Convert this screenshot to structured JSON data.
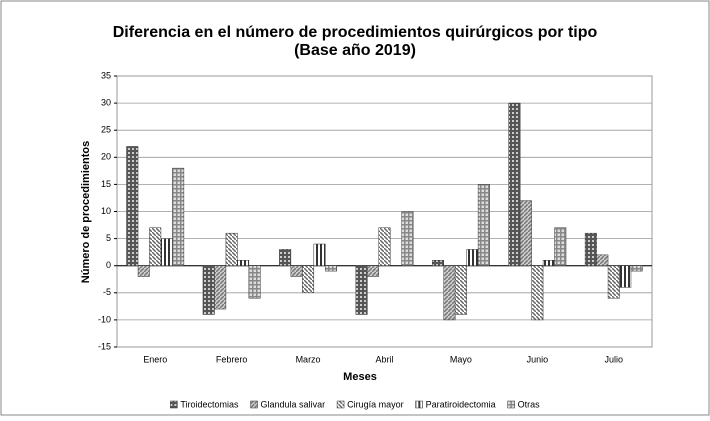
{
  "chart_data": {
    "type": "bar",
    "title": "Diferencia en el número de procedimientos quirúrgicos por tipo",
    "subtitle": "(Base año 2019)",
    "x_label": "Meses",
    "y_label": "Número de procedimientos",
    "categories": [
      "Enero",
      "Febrero",
      "Marzo",
      "Abril",
      "Mayo",
      "Junio",
      "Julio"
    ],
    "series": [
      {
        "name": "Tiroidectomias",
        "color": "#555555",
        "values": [
          22,
          -9,
          3,
          -9,
          1,
          30,
          6
        ]
      },
      {
        "name": "Glandula salivar",
        "color": "#777777",
        "values": [
          -2,
          -8,
          -2,
          -2,
          -10,
          12,
          2
        ]
      },
      {
        "name": "Cirugía mayor",
        "color": "#666666",
        "values": [
          7,
          6,
          -5,
          7,
          -9,
          -10,
          -6
        ]
      },
      {
        "name": "Paratiroidectomia",
        "color": "#333333",
        "values": [
          5,
          1,
          4,
          0,
          3,
          1,
          -4
        ]
      },
      {
        "name": "Otras",
        "color": "#888888",
        "values": [
          18,
          -6,
          -1,
          10,
          15,
          7,
          -1
        ]
      }
    ],
    "ylim": [
      -15,
      35
    ],
    "yticks": [
      -15,
      -10,
      -5,
      0,
      5,
      10,
      15,
      20,
      25,
      30,
      35
    ],
    "grid": true,
    "legend": "bottom"
  }
}
